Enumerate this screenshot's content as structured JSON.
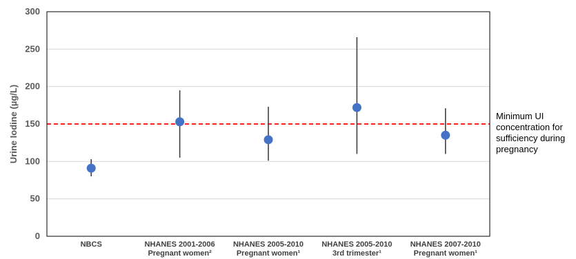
{
  "chart_data": {
    "type": "scatter",
    "ylabel": "Urine Iodine (µg/L)",
    "ylim": [
      0,
      300
    ],
    "yticks": [
      0,
      50,
      100,
      150,
      200,
      250,
      300
    ],
    "grid": true,
    "categories": [
      [
        "NBCS",
        ""
      ],
      [
        "NHANES 2001-2006",
        "Pregnant women²"
      ],
      [
        "NHANES 2005-2010",
        "Pregnant women¹"
      ],
      [
        "NHANES 2005-2010",
        "3rd trimester¹"
      ],
      [
        "NHANES 2007-2010",
        "Pregnant women¹"
      ]
    ],
    "points": [
      {
        "y": 91,
        "low": 80,
        "high": 103
      },
      {
        "y": 153,
        "low": 105,
        "high": 195
      },
      {
        "y": 129,
        "low": 101,
        "high": 173
      },
      {
        "y": 172,
        "low": 110,
        "high": 266
      },
      {
        "y": 135,
        "low": 110,
        "high": 171
      }
    ],
    "reference_line": {
      "y": 150,
      "label": [
        "Minimum UI",
        "concentration for",
        "sufficiency during",
        "pregnancy"
      ]
    },
    "colors": {
      "point": "#4472C4",
      "error_bar": "#404040",
      "reference": "#FF0000",
      "grid": "#D9D9D9",
      "axis": "#000000"
    }
  }
}
